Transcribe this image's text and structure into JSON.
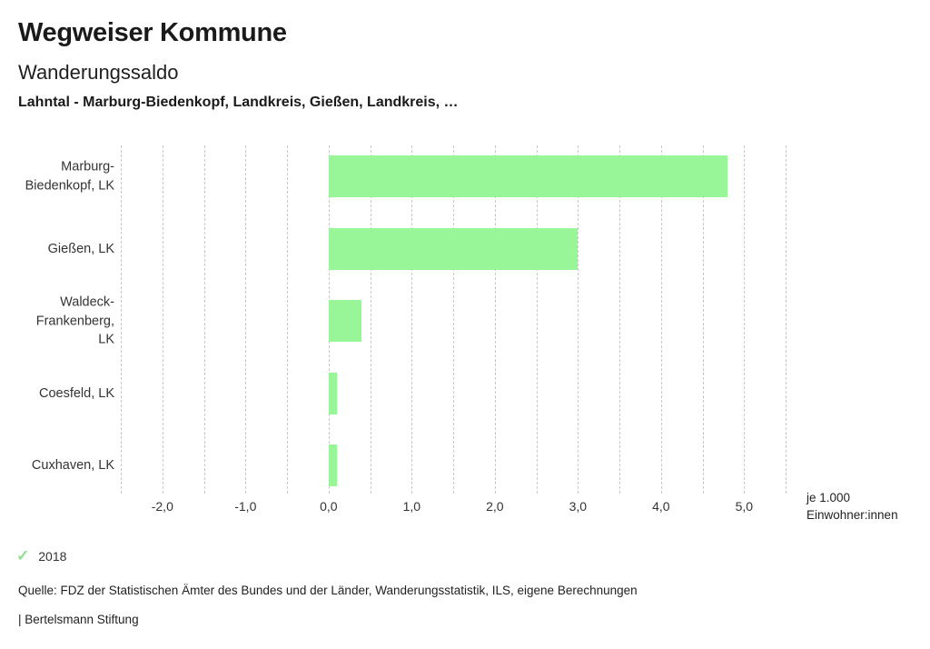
{
  "header": {
    "title": "Wegweiser Kommune",
    "subtitle": "Wanderungssaldo",
    "selection": "Lahntal - Marburg-Biedenkopf, Landkreis, Gießen, Landkreis, …"
  },
  "chart_data": {
    "type": "bar",
    "orientation": "horizontal",
    "title": "Wanderungssaldo",
    "categories": [
      "Marburg-\nBiedenkopf, LK",
      "Gießen, LK",
      "Waldeck-\nFrankenberg,\nLK",
      "Coesfeld, LK",
      "Cuxhaven, LK"
    ],
    "values": [
      4.8,
      3.0,
      0.4,
      0.1,
      0.1
    ],
    "series_name": "2018",
    "xlim": [
      -2.5,
      5.5
    ],
    "gridline_step": 0.5,
    "grid": true,
    "ticks": [
      {
        "value": -2,
        "label": "-2,0"
      },
      {
        "value": -1,
        "label": "-1,0"
      },
      {
        "value": 0,
        "label": "0,0"
      },
      {
        "value": 1,
        "label": "1,0"
      },
      {
        "value": 2,
        "label": "2,0"
      },
      {
        "value": 3,
        "label": "3,0"
      },
      {
        "value": 4,
        "label": "4,0"
      },
      {
        "value": 5,
        "label": "5,0"
      }
    ],
    "unit_label": "je 1.000\nEinwohner:innen",
    "bar_color": "#98f698",
    "gridline_color": "#c9c9c9"
  },
  "legend": {
    "check_glyph": "✓",
    "label": "2018",
    "check_color": "#8de08d"
  },
  "footer": {
    "source": "Quelle: FDZ der Statistischen Ämter des Bundes und der Länder, Wanderungsstatistik, ILS, eigene Berechnungen",
    "attribution": "| Bertelsmann Stiftung"
  }
}
